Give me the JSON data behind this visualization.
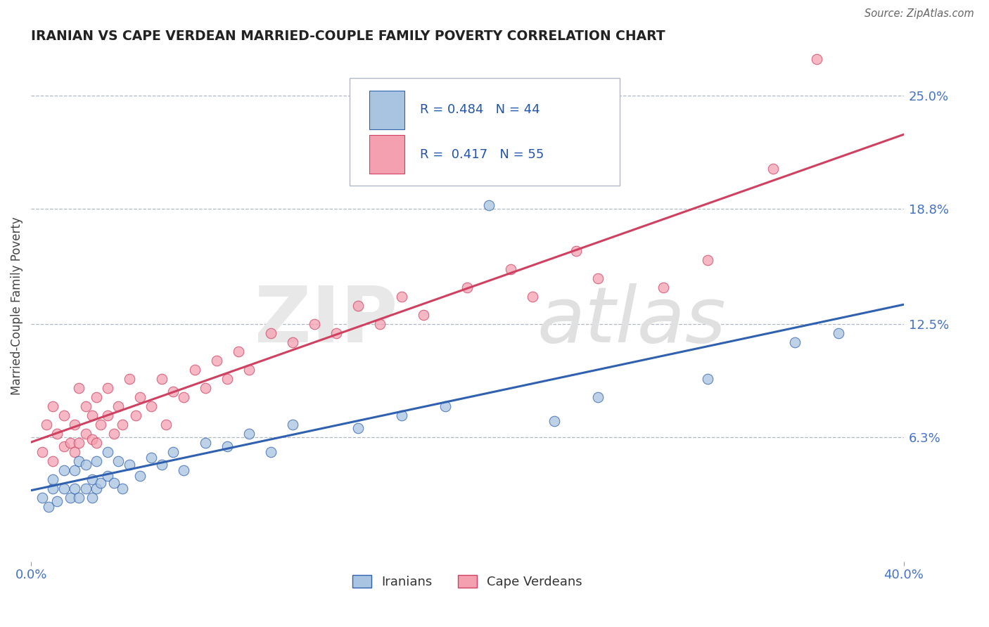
{
  "title": "IRANIAN VS CAPE VERDEAN MARRIED-COUPLE FAMILY POVERTY CORRELATION CHART",
  "source_text": "Source: ZipAtlas.com",
  "ylabel": "Married-Couple Family Poverty",
  "xlim": [
    0.0,
    0.4
  ],
  "ylim": [
    -0.005,
    0.275
  ],
  "xtick_labels": [
    "0.0%",
    "40.0%"
  ],
  "xtick_vals": [
    0.0,
    0.4
  ],
  "ytick_labels": [
    "6.3%",
    "12.5%",
    "18.8%",
    "25.0%"
  ],
  "ytick_vals": [
    0.063,
    0.125,
    0.188,
    0.25
  ],
  "grid_color": "#b0b8c8",
  "background_color": "#ffffff",
  "iranian_color": "#a8c4e0",
  "capeverdean_color": "#f4a0b0",
  "iranian_line_color": "#3060b0",
  "capeverdean_line_color": "#d04060",
  "R_iranian": 0.484,
  "N_iranian": 44,
  "R_capeverdean": 0.417,
  "N_capeverdean": 55,
  "legend_label_iranian": "Iranians",
  "legend_label_capeverdean": "Cape Verdeans",
  "iranian_scatter_x": [
    0.005,
    0.008,
    0.01,
    0.01,
    0.012,
    0.015,
    0.015,
    0.018,
    0.02,
    0.02,
    0.022,
    0.022,
    0.025,
    0.025,
    0.028,
    0.028,
    0.03,
    0.03,
    0.032,
    0.035,
    0.035,
    0.038,
    0.04,
    0.042,
    0.045,
    0.05,
    0.055,
    0.06,
    0.065,
    0.07,
    0.08,
    0.09,
    0.1,
    0.11,
    0.12,
    0.15,
    0.17,
    0.19,
    0.21,
    0.24,
    0.26,
    0.31,
    0.35,
    0.37
  ],
  "iranian_scatter_y": [
    0.03,
    0.025,
    0.035,
    0.04,
    0.028,
    0.035,
    0.045,
    0.03,
    0.035,
    0.045,
    0.03,
    0.05,
    0.035,
    0.048,
    0.03,
    0.04,
    0.035,
    0.05,
    0.038,
    0.042,
    0.055,
    0.038,
    0.05,
    0.035,
    0.048,
    0.042,
    0.052,
    0.048,
    0.055,
    0.045,
    0.06,
    0.058,
    0.065,
    0.055,
    0.07,
    0.068,
    0.075,
    0.08,
    0.19,
    0.072,
    0.085,
    0.095,
    0.115,
    0.12
  ],
  "capeverdean_scatter_x": [
    0.005,
    0.007,
    0.01,
    0.01,
    0.012,
    0.015,
    0.015,
    0.018,
    0.02,
    0.02,
    0.022,
    0.022,
    0.025,
    0.025,
    0.028,
    0.028,
    0.03,
    0.03,
    0.032,
    0.035,
    0.035,
    0.038,
    0.04,
    0.042,
    0.045,
    0.048,
    0.05,
    0.055,
    0.06,
    0.062,
    0.065,
    0.07,
    0.075,
    0.08,
    0.085,
    0.09,
    0.095,
    0.1,
    0.11,
    0.12,
    0.13,
    0.14,
    0.15,
    0.16,
    0.17,
    0.18,
    0.2,
    0.22,
    0.23,
    0.25,
    0.26,
    0.29,
    0.31,
    0.34,
    0.36
  ],
  "capeverdean_scatter_y": [
    0.055,
    0.07,
    0.05,
    0.08,
    0.065,
    0.058,
    0.075,
    0.06,
    0.055,
    0.07,
    0.06,
    0.09,
    0.065,
    0.08,
    0.062,
    0.075,
    0.06,
    0.085,
    0.07,
    0.075,
    0.09,
    0.065,
    0.08,
    0.07,
    0.095,
    0.075,
    0.085,
    0.08,
    0.095,
    0.07,
    0.088,
    0.085,
    0.1,
    0.09,
    0.105,
    0.095,
    0.11,
    0.1,
    0.12,
    0.115,
    0.125,
    0.12,
    0.135,
    0.125,
    0.14,
    0.13,
    0.145,
    0.155,
    0.14,
    0.165,
    0.15,
    0.145,
    0.16,
    0.21,
    0.27
  ]
}
